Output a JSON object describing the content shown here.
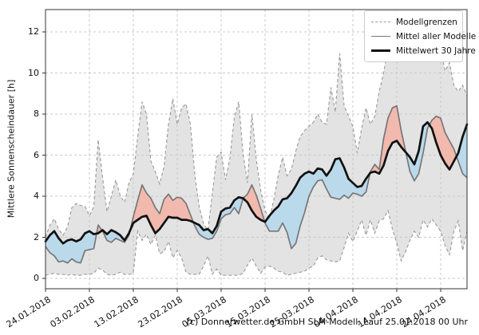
{
  "caption": "(c) Donnerwetter.de GmbH SLM-Modell, Lauf 25.01.2018 00 Uhr",
  "colors": {
    "band_fill": "#e3e3e3",
    "band_edge": "#999999",
    "fill_above": "#f2b9af",
    "fill_below": "#badaec",
    "model_mean_line": "#777777",
    "climate_mean_line": "#111111",
    "grid": "#c9c9c9",
    "spine": "#333333"
  },
  "chart_data": {
    "type": "line",
    "title": "",
    "xlabel": "",
    "ylabel": "Mittlere Sonnenscheindauer [h]",
    "ylim": [
      -0.5,
      13.1
    ],
    "xlim_days": [
      0,
      96
    ],
    "grid": true,
    "legend_position": "top-right",
    "legend": [
      "Modellgrenzen",
      "Mittel aller Modelle",
      "Mittelwert 30 Jahre"
    ],
    "y_tick_labels": [
      "0",
      "2",
      "4",
      "6",
      "8",
      "10",
      "12"
    ],
    "y_tick_values": [
      0,
      2,
      4,
      6,
      8,
      10,
      12
    ],
    "x_tick_positions": [
      0,
      10,
      20,
      30,
      40,
      50,
      60,
      70,
      80,
      90
    ],
    "x_tick_labels": [
      "24.01.2018",
      "03.02.2018",
      "13.02.2018",
      "23.02.2018",
      "05.03.2018",
      "15.03.2018",
      "25.03.2018",
      "04.04.2018",
      "14.04.2018",
      "24.04.2018"
    ],
    "dates": [
      "24.01.2018",
      "25.01.2018",
      "26.01.2018",
      "27.01.2018",
      "28.01.2018",
      "29.01.2018",
      "30.01.2018",
      "31.01.2018",
      "01.02.2018",
      "02.02.2018",
      "03.02.2018",
      "04.02.2018",
      "05.02.2018",
      "06.02.2018",
      "07.02.2018",
      "08.02.2018",
      "09.02.2018",
      "10.02.2018",
      "11.02.2018",
      "12.02.2018",
      "13.02.2018",
      "14.02.2018",
      "15.02.2018",
      "16.02.2018",
      "17.02.2018",
      "18.02.2018",
      "19.02.2018",
      "20.02.2018",
      "21.02.2018",
      "22.02.2018",
      "23.02.2018",
      "24.02.2018",
      "25.02.2018",
      "26.02.2018",
      "27.02.2018",
      "28.02.2018",
      "01.03.2018",
      "02.03.2018",
      "03.03.2018",
      "04.03.2018",
      "05.03.2018",
      "06.03.2018",
      "07.03.2018",
      "08.03.2018",
      "09.03.2018",
      "10.03.2018",
      "11.03.2018",
      "12.03.2018",
      "13.03.2018",
      "14.03.2018",
      "15.03.2018",
      "16.03.2018",
      "17.03.2018",
      "18.03.2018",
      "19.03.2018",
      "20.03.2018",
      "21.03.2018",
      "22.03.2018",
      "23.03.2018",
      "24.03.2018",
      "25.03.2018",
      "26.03.2018",
      "27.03.2018",
      "28.03.2018",
      "29.03.2018",
      "30.03.2018",
      "31.03.2018",
      "01.04.2018",
      "02.04.2018",
      "03.04.2018",
      "04.04.2018",
      "05.04.2018",
      "06.04.2018",
      "07.04.2018",
      "08.04.2018",
      "09.04.2018",
      "10.04.2018",
      "11.04.2018",
      "12.04.2018",
      "13.04.2018",
      "14.04.2018",
      "15.04.2018",
      "16.04.2018",
      "17.04.2018",
      "18.04.2018",
      "19.04.2018",
      "20.04.2018",
      "21.04.2018",
      "22.04.2018",
      "23.04.2018",
      "24.04.2018",
      "25.04.2018",
      "26.04.2018",
      "27.04.2018",
      "28.04.2018",
      "29.04.2018",
      "30.04.2018"
    ],
    "series": [
      {
        "name": "Modellgrenzen (oben)",
        "role": "band_upper",
        "style": "dashed-gray",
        "values": [
          2.0,
          2.6,
          2.9,
          2.4,
          2.1,
          2.5,
          3.45,
          3.65,
          3.55,
          3.5,
          3.05,
          3.5,
          6.75,
          4.9,
          3.25,
          4.0,
          4.8,
          4.05,
          3.7,
          4.65,
          5.1,
          6.9,
          8.6,
          8.0,
          5.7,
          5.2,
          4.6,
          5.45,
          7.5,
          8.75,
          7.5,
          8.3,
          8.5,
          7.5,
          5.05,
          3.5,
          2.65,
          2.35,
          4.15,
          5.9,
          6.15,
          4.8,
          5.85,
          7.85,
          8.6,
          6.05,
          4.65,
          8.0,
          5.8,
          4.3,
          3.3,
          2.9,
          3.85,
          5.0,
          5.9,
          5.0,
          5.3,
          6.2,
          6.9,
          7.2,
          7.4,
          7.6,
          8.0,
          7.6,
          7.5,
          9.3,
          8.1,
          10.95,
          8.4,
          7.9,
          7.4,
          6.1,
          7.3,
          8.3,
          7.5,
          7.9,
          9.1,
          10.0,
          11.3,
          10.7,
          11.3,
          10.8,
          11.1,
          10.8,
          10.6,
          10.9,
          11.1,
          11.3,
          10.6,
          10.9,
          11.2,
          10.1,
          10.5,
          9.4,
          9.1,
          9.4,
          8.9
        ]
      },
      {
        "name": "Modellgrenzen (unten)",
        "role": "band_lower",
        "style": "dashed-gray",
        "values": [
          0.15,
          0.2,
          0.25,
          0.2,
          0.2,
          0.15,
          0.2,
          0.15,
          0.15,
          0.2,
          0.2,
          0.25,
          0.5,
          0.4,
          0.2,
          0.15,
          0.2,
          0.3,
          0.2,
          0.2,
          0.25,
          2.3,
          1.85,
          2.15,
          1.65,
          2.1,
          1.2,
          1.3,
          1.8,
          1.0,
          1.35,
          1.0,
          0.3,
          0.2,
          0.2,
          0.2,
          0.6,
          1.1,
          0.2,
          0.45,
          0.15,
          0.15,
          0.15,
          0.15,
          0.15,
          0.25,
          0.65,
          1.0,
          0.6,
          0.25,
          0.55,
          0.6,
          0.5,
          0.35,
          0.3,
          0.15,
          0.2,
          0.25,
          0.3,
          0.35,
          0.5,
          0.6,
          1.0,
          1.1,
          0.9,
          0.85,
          0.8,
          0.85,
          1.5,
          2.2,
          1.8,
          2.3,
          2.85,
          2.1,
          2.85,
          2.2,
          2.8,
          2.9,
          3.3,
          2.4,
          1.7,
          0.85,
          1.3,
          1.85,
          2.3,
          2.0,
          2.85,
          2.5,
          2.9,
          2.6,
          2.3,
          1.6,
          1.15,
          2.3,
          2.8,
          1.35,
          2.3
        ]
      },
      {
        "name": "Mittel aller Modelle",
        "role": "model_mean",
        "style": "solid-gray",
        "values": [
          1.55,
          1.25,
          1.1,
          0.8,
          0.85,
          0.75,
          0.95,
          0.8,
          0.75,
          1.35,
          1.4,
          1.45,
          2.6,
          2.3,
          1.85,
          1.75,
          1.95,
          1.85,
          1.75,
          2.1,
          3.0,
          3.8,
          4.55,
          4.15,
          3.9,
          3.45,
          3.15,
          3.85,
          4.1,
          3.8,
          3.95,
          3.9,
          3.65,
          3.1,
          2.55,
          2.15,
          2.0,
          1.9,
          1.95,
          2.3,
          2.9,
          3.1,
          3.15,
          3.45,
          3.15,
          3.9,
          4.1,
          4.55,
          4.05,
          3.4,
          2.7,
          2.3,
          2.3,
          2.3,
          2.7,
          2.25,
          1.45,
          1.7,
          2.55,
          3.2,
          4.0,
          4.45,
          4.75,
          4.8,
          4.35,
          3.95,
          3.9,
          3.85,
          4.05,
          3.9,
          4.15,
          4.1,
          4.0,
          4.2,
          5.2,
          5.55,
          5.3,
          6.8,
          7.8,
          8.3,
          8.4,
          7.2,
          6.2,
          5.2,
          4.75,
          5.1,
          6.1,
          7.3,
          7.7,
          7.9,
          7.8,
          7.1,
          6.7,
          6.3,
          5.7,
          5.1,
          4.9
        ]
      },
      {
        "name": "Mittelwert 30 Jahre",
        "role": "climate_mean",
        "style": "solid-black-thick",
        "values": [
          1.8,
          2.1,
          2.3,
          1.95,
          1.7,
          1.85,
          1.9,
          1.8,
          1.9,
          2.2,
          2.3,
          2.15,
          2.2,
          2.35,
          2.15,
          2.35,
          2.25,
          2.1,
          1.85,
          2.2,
          2.7,
          2.85,
          3.0,
          3.05,
          2.6,
          2.2,
          2.4,
          2.7,
          3.0,
          2.95,
          2.95,
          2.85,
          2.85,
          2.8,
          2.7,
          2.6,
          2.35,
          2.4,
          2.2,
          2.55,
          3.25,
          3.4,
          3.45,
          3.8,
          3.95,
          3.9,
          3.7,
          3.3,
          3.0,
          2.85,
          2.75,
          3.05,
          3.3,
          3.5,
          3.85,
          3.9,
          4.15,
          4.5,
          4.9,
          5.1,
          5.2,
          5.1,
          5.35,
          5.3,
          5.0,
          5.3,
          5.8,
          5.85,
          5.4,
          4.85,
          4.65,
          4.45,
          4.5,
          4.85,
          5.15,
          5.2,
          5.1,
          5.5,
          6.2,
          6.6,
          6.7,
          6.4,
          6.15,
          5.9,
          5.55,
          6.2,
          7.4,
          7.6,
          7.3,
          6.6,
          6.0,
          5.6,
          5.3,
          5.7,
          6.1,
          6.9,
          7.5
        ]
      }
    ],
    "fill_between": {
      "above_color_meaning": "Mittel aller Modelle über Mittelwert 30 Jahre (rot)",
      "below_color_meaning": "Mittel aller Modelle unter Mittelwert 30 Jahre (blau)"
    }
  }
}
